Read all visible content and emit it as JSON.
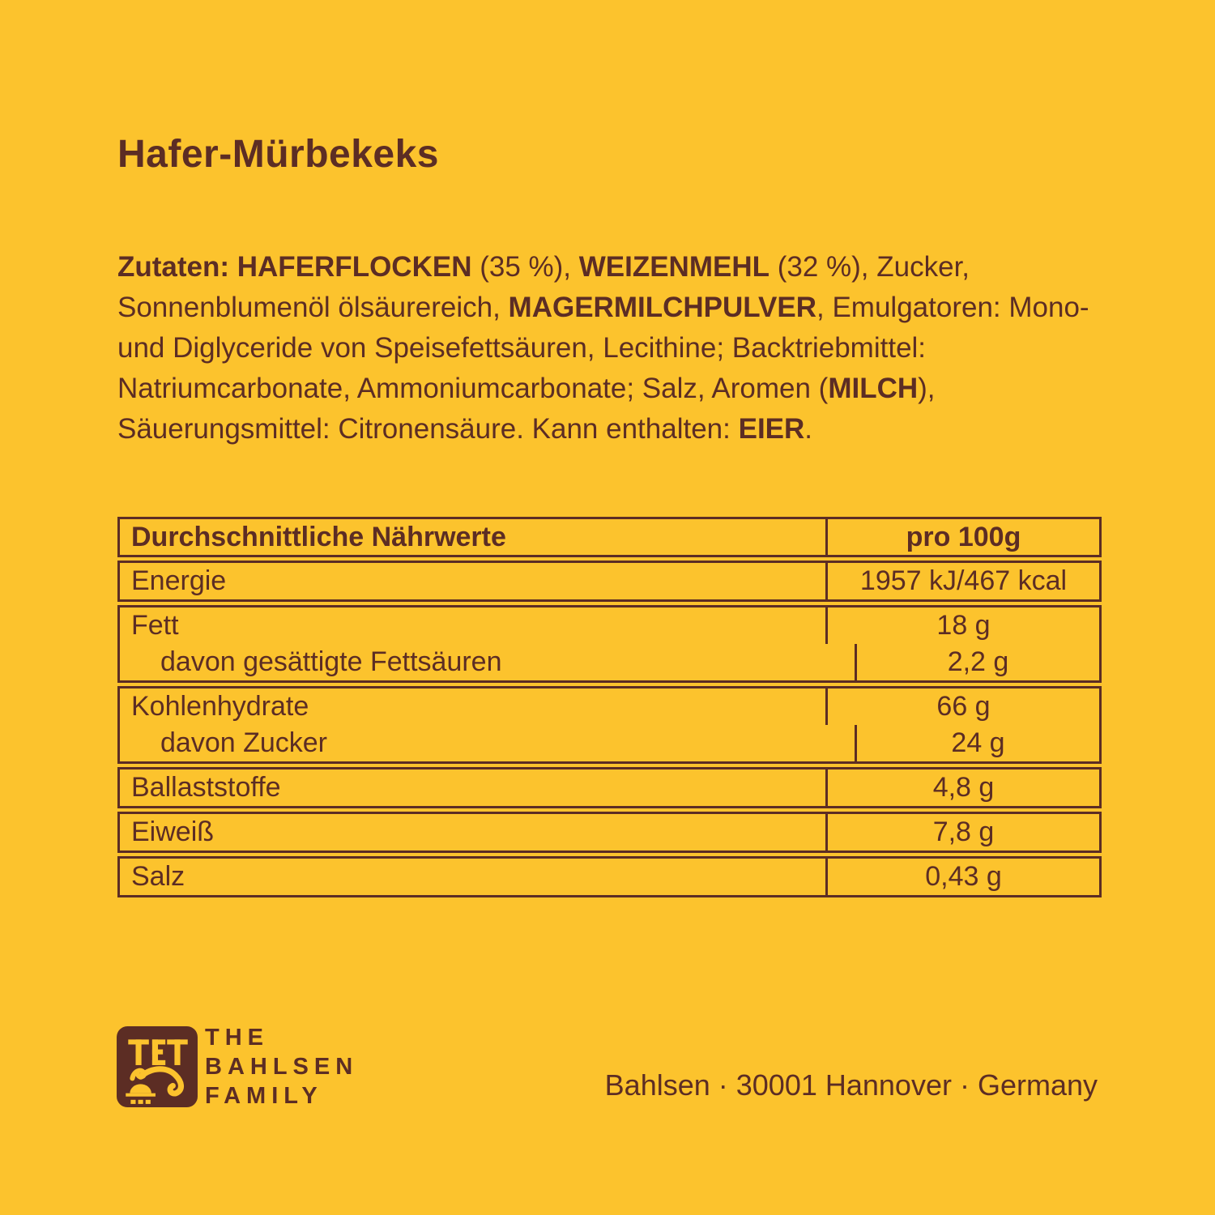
{
  "page": {
    "background_color": "#FCC32D",
    "text_color": "#5C2D24"
  },
  "title": "Hafer-Mürbekeks",
  "ingredients": {
    "segments": [
      {
        "text": "Zutaten: HAFERFLOCKEN",
        "bold": true
      },
      {
        "text": " (35 %), ",
        "bold": false
      },
      {
        "text": "WEIZENMEHL",
        "bold": true
      },
      {
        "text": " (32 %), Zucker, Sonnenblumenöl ölsäurereich, ",
        "bold": false
      },
      {
        "text": "MAGERMILCHPULVER",
        "bold": true
      },
      {
        "text": ", Emulgatoren: Mono- und Diglyceride von Speisefettsäuren, Lecithine; Backtriebmittel: Natriumcarbonate, Ammoniumcarbonate; Salz, Aromen (",
        "bold": false
      },
      {
        "text": "MILCH",
        "bold": true
      },
      {
        "text": "), Säuerungsmittel: Citronensäure. Kann enthalten: ",
        "bold": false
      },
      {
        "text": "EIER",
        "bold": true
      },
      {
        "text": ".",
        "bold": false
      }
    ]
  },
  "nutrition_table": {
    "header": {
      "label": "Durchschnittliche Nährwerte",
      "value": "pro 100g"
    },
    "groups": [
      {
        "rows": [
          {
            "label": "Energie",
            "value": "1957 kJ/467 kcal",
            "indent": false
          }
        ]
      },
      {
        "rows": [
          {
            "label": "Fett",
            "value": "18 g",
            "indent": false
          },
          {
            "label": "davon gesättigte Fettsäuren",
            "value": "2,2 g",
            "indent": true
          }
        ]
      },
      {
        "rows": [
          {
            "label": "Kohlenhydrate",
            "value": "66 g",
            "indent": false
          },
          {
            "label": "davon Zucker",
            "value": "24 g",
            "indent": true
          }
        ]
      },
      {
        "rows": [
          {
            "label": "Ballaststoffe",
            "value": "4,8 g",
            "indent": false
          }
        ]
      },
      {
        "rows": [
          {
            "label": "Eiweiß",
            "value": "7,8 g",
            "indent": false
          }
        ]
      },
      {
        "rows": [
          {
            "label": "Salz",
            "value": "0,43 g",
            "indent": false
          }
        ]
      }
    ]
  },
  "footer": {
    "logo": {
      "icon": "tet-hieroglyph-logo",
      "tet_text": "TET",
      "wordmark_lines": [
        "THE",
        "BAHLSEN",
        "FAMILY"
      ]
    },
    "address": "Bahlsen · 30001 Hannover · Germany"
  }
}
